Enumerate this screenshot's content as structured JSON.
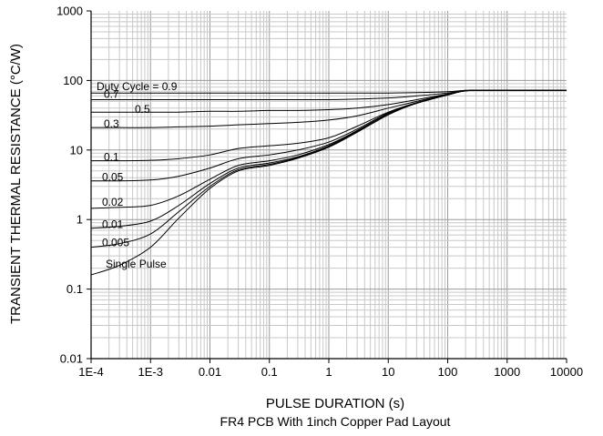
{
  "chart_data": {
    "type": "line",
    "title": "",
    "xlabel": "PULSE DURATION (s)",
    "subtitle": "FR4 PCB With 1inch Copper Pad Layout",
    "ylabel": "TRANSIENT THERMAL RESISTANCE (°C/W)",
    "x_scale": "log",
    "y_scale": "log",
    "xlim": [
      0.0001,
      10000
    ],
    "ylim": [
      0.01,
      1000
    ],
    "grid": true,
    "x_ticks": [
      "1E-4",
      "1E-3",
      "0.01",
      "0.1",
      "1",
      "10",
      "100",
      "1000",
      "10000"
    ],
    "y_ticks": [
      "0.01",
      "0.1",
      "1",
      "10",
      "100",
      "1000"
    ],
    "x": [
      0.0001,
      0.0003,
      0.001,
      0.003,
      0.01,
      0.03,
      0.1,
      0.3,
      1,
      3,
      10,
      30,
      100,
      200,
      500,
      1000,
      10000
    ],
    "series": [
      {
        "name": "Duty Cycle = 0.9",
        "label_text": "Duty Cycle = 0.9",
        "values": [
          66,
          66,
          66,
          66,
          66,
          66,
          66,
          66,
          66,
          66,
          66,
          67,
          69,
          72,
          72,
          72,
          72
        ]
      },
      {
        "name": "0.7",
        "label_text": "0.7",
        "values": [
          53,
          53,
          53,
          53,
          53,
          53,
          53,
          53,
          53,
          54,
          56,
          60,
          66,
          72,
          72,
          72,
          72
        ]
      },
      {
        "name": "0.5",
        "label_text": "0.5",
        "values": [
          35,
          35,
          35,
          35,
          36,
          36,
          37,
          37,
          38,
          40,
          45,
          53,
          64,
          71,
          72,
          72,
          72
        ]
      },
      {
        "name": "0.3",
        "label_text": "0.3",
        "values": [
          21,
          21,
          21,
          21.5,
          22,
          23,
          24,
          25,
          27,
          31,
          40,
          50,
          63,
          71,
          72,
          72,
          72
        ]
      },
      {
        "name": "0.1",
        "label_text": "0.1",
        "values": [
          7,
          7,
          7.1,
          7.5,
          8.5,
          10.5,
          11.5,
          12.5,
          15,
          22,
          35,
          48,
          62,
          71,
          72,
          72,
          72
        ]
      },
      {
        "name": "0.05",
        "label_text": "0.05",
        "values": [
          3.6,
          3.6,
          3.7,
          4.2,
          5.5,
          7.5,
          8.5,
          10,
          13,
          20,
          34,
          47,
          62,
          71,
          72,
          72,
          72
        ]
      },
      {
        "name": "0.02",
        "label_text": "0.02",
        "values": [
          1.45,
          1.5,
          1.6,
          2.2,
          3.8,
          6,
          7,
          8.5,
          12,
          19,
          33,
          47,
          62,
          71,
          72,
          72,
          72
        ]
      },
      {
        "name": "0.01",
        "label_text": "0.01",
        "values": [
          0.75,
          0.8,
          0.95,
          1.6,
          3.3,
          5.5,
          6.5,
          8,
          11.5,
          19,
          33,
          47,
          62,
          71,
          72,
          72,
          72
        ]
      },
      {
        "name": "0.005",
        "label_text": "0.005",
        "values": [
          0.4,
          0.45,
          0.62,
          1.3,
          3,
          5.2,
          6.2,
          7.8,
          11.2,
          18.5,
          33,
          47,
          62,
          71,
          72,
          72,
          72
        ]
      },
      {
        "name": "Single Pulse",
        "label_text": "Single Pulse",
        "values": [
          0.16,
          0.22,
          0.4,
          1.05,
          2.8,
          5,
          6,
          7.6,
          11,
          18,
          32,
          47,
          62,
          71,
          72,
          72,
          72
        ]
      }
    ]
  }
}
